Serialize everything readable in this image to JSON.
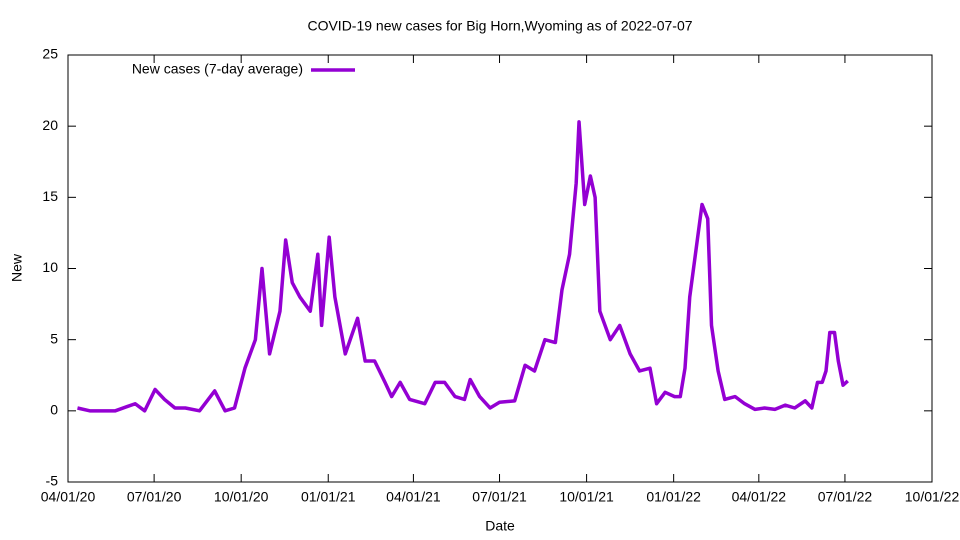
{
  "chart_data": {
    "type": "line",
    "title": "COVID-19 new cases for Big Horn,Wyoming as of 2022-07-07",
    "x_label": "Date",
    "y_label": "New",
    "x": [
      "2020-04-11",
      "2020-04-24",
      "2020-05-05",
      "2020-05-21",
      "2020-06-11",
      "2020-06-21",
      "2020-07-02",
      "2020-07-12",
      "2020-07-23",
      "2020-08-03",
      "2020-08-18",
      "2020-09-03",
      "2020-09-14",
      "2020-09-24",
      "2020-10-05",
      "2020-10-16",
      "2020-10-23",
      "2020-10-31",
      "2020-11-11",
      "2020-11-17",
      "2020-11-24",
      "2020-12-02",
      "2020-12-13",
      "2020-12-21",
      "2020-12-25",
      "2021-01-02",
      "2021-01-08",
      "2021-01-19",
      "2021-02-01",
      "2021-02-09",
      "2021-02-19",
      "2021-03-02",
      "2021-03-09",
      "2021-03-18",
      "2021-03-28",
      "2021-04-13",
      "2021-04-24",
      "2021-05-04",
      "2021-05-15",
      "2021-05-25",
      "2021-05-31",
      "2021-06-10",
      "2021-06-21",
      "2021-07-01",
      "2021-07-17",
      "2021-07-28",
      "2021-08-07",
      "2021-08-18",
      "2021-08-29",
      "2021-09-05",
      "2021-09-13",
      "2021-09-20",
      "2021-09-23",
      "2021-09-29",
      "2021-10-05",
      "2021-10-10",
      "2021-10-15",
      "2021-10-26",
      "2021-11-05",
      "2021-11-16",
      "2021-11-26",
      "2021-12-07",
      "2021-12-14",
      "2021-12-23",
      "2022-01-02",
      "2022-01-08",
      "2022-01-13",
      "2022-01-18",
      "2022-01-26",
      "2022-01-31",
      "2022-02-06",
      "2022-02-10",
      "2022-02-17",
      "2022-02-24",
      "2022-03-07",
      "2022-03-17",
      "2022-03-28",
      "2022-04-07",
      "2022-04-18",
      "2022-04-29",
      "2022-05-09",
      "2022-05-20",
      "2022-05-27",
      "2022-06-02",
      "2022-06-07",
      "2022-06-11",
      "2022-06-15",
      "2022-06-20",
      "2022-06-24",
      "2022-06-29",
      "2022-07-04"
    ],
    "series": [
      {
        "name": "New cases (7-day average)",
        "color": "#9400d3",
        "values": [
          0.2,
          0,
          0,
          0,
          0.5,
          0,
          1.5,
          0.8,
          0.2,
          0.2,
          0,
          1.4,
          0,
          0.2,
          3,
          5,
          10,
          4,
          7,
          12,
          9,
          8,
          7,
          11,
          6,
          12.2,
          8,
          4,
          6.5,
          3.5,
          3.5,
          2,
          1,
          2,
          0.8,
          0.5,
          2,
          2,
          1,
          0.8,
          2.2,
          1,
          0.2,
          0.6,
          0.7,
          3.2,
          2.8,
          5,
          4.8,
          8.5,
          11,
          16,
          20.3,
          14.5,
          16.5,
          15,
          7,
          5,
          6,
          4,
          2.8,
          3,
          0.5,
          1.3,
          1,
          1,
          3,
          8,
          12,
          14.5,
          13.5,
          6,
          2.8,
          0.8,
          1,
          0.5,
          0.1,
          0.2,
          0.1,
          0.4,
          0.2,
          0.7,
          0.2,
          2,
          2,
          2.8,
          5.5,
          5.5,
          3.5,
          1.8,
          2.1
        ]
      }
    ],
    "xlim": [
      "2020-04-01",
      "2022-10-01"
    ],
    "xticks": [
      {
        "value": "2020-04-01",
        "label": "04/01/20"
      },
      {
        "value": "2020-07-01",
        "label": "07/01/20"
      },
      {
        "value": "2020-10-01",
        "label": "10/01/20"
      },
      {
        "value": "2021-01-01",
        "label": "01/01/21"
      },
      {
        "value": "2021-04-01",
        "label": "04/01/21"
      },
      {
        "value": "2021-07-01",
        "label": "07/01/21"
      },
      {
        "value": "2021-10-01",
        "label": "10/01/21"
      },
      {
        "value": "2022-01-01",
        "label": "01/01/22"
      },
      {
        "value": "2022-04-01",
        "label": "04/01/22"
      },
      {
        "value": "2022-07-01",
        "label": "07/01/22"
      },
      {
        "value": "2022-10-01",
        "label": "10/01/22"
      }
    ],
    "ylim": [
      -5,
      25
    ],
    "yticks": [
      -5,
      0,
      5,
      10,
      15,
      20,
      25
    ],
    "legend": "top-left"
  }
}
